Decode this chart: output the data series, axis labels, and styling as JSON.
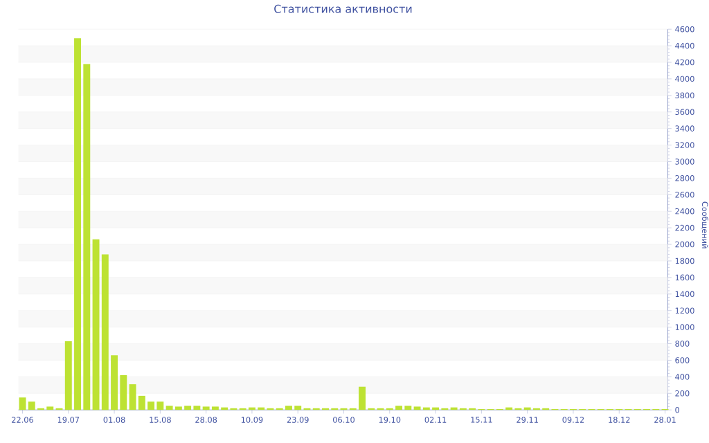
{
  "chart_data": {
    "type": "bar",
    "title": "Статистика активности",
    "ylabel": "Сообщений",
    "color": "#bde233",
    "categories": [
      "22.06",
      null,
      null,
      null,
      null,
      "19.07",
      null,
      null,
      null,
      null,
      "01.08",
      null,
      null,
      null,
      null,
      "15.08",
      null,
      null,
      null,
      null,
      "28.08",
      null,
      null,
      null,
      null,
      "10.09",
      null,
      null,
      null,
      null,
      "23.09",
      null,
      null,
      null,
      null,
      "06.10",
      null,
      null,
      null,
      null,
      "19.10",
      null,
      null,
      null,
      null,
      "02.11",
      null,
      null,
      null,
      null,
      "15.11",
      null,
      null,
      null,
      null,
      "29.11",
      null,
      null,
      null,
      null,
      "09.12",
      null,
      null,
      null,
      null,
      "18.12",
      null,
      null,
      null,
      null,
      "28.01"
    ],
    "values": [
      150,
      100,
      20,
      40,
      20,
      830,
      4490,
      4180,
      2060,
      1880,
      660,
      420,
      310,
      170,
      100,
      100,
      50,
      40,
      50,
      50,
      40,
      40,
      30,
      20,
      20,
      30,
      30,
      20,
      20,
      50,
      50,
      20,
      20,
      20,
      20,
      20,
      20,
      280,
      20,
      20,
      20,
      50,
      50,
      40,
      30,
      30,
      20,
      30,
      20,
      20,
      10,
      10,
      10,
      30,
      20,
      30,
      20,
      20,
      10,
      10,
      10,
      10,
      10,
      10,
      10,
      10,
      10,
      10,
      10,
      10,
      10
    ],
    "ylim": [
      0,
      4600
    ],
    "yticks": [
      0,
      200,
      400,
      600,
      800,
      1000,
      1200,
      1400,
      1600,
      1800,
      2000,
      2200,
      2400,
      2600,
      2800,
      3000,
      3200,
      3400,
      3600,
      3800,
      4000,
      4200,
      4400,
      4600
    ],
    "grid": "y"
  }
}
